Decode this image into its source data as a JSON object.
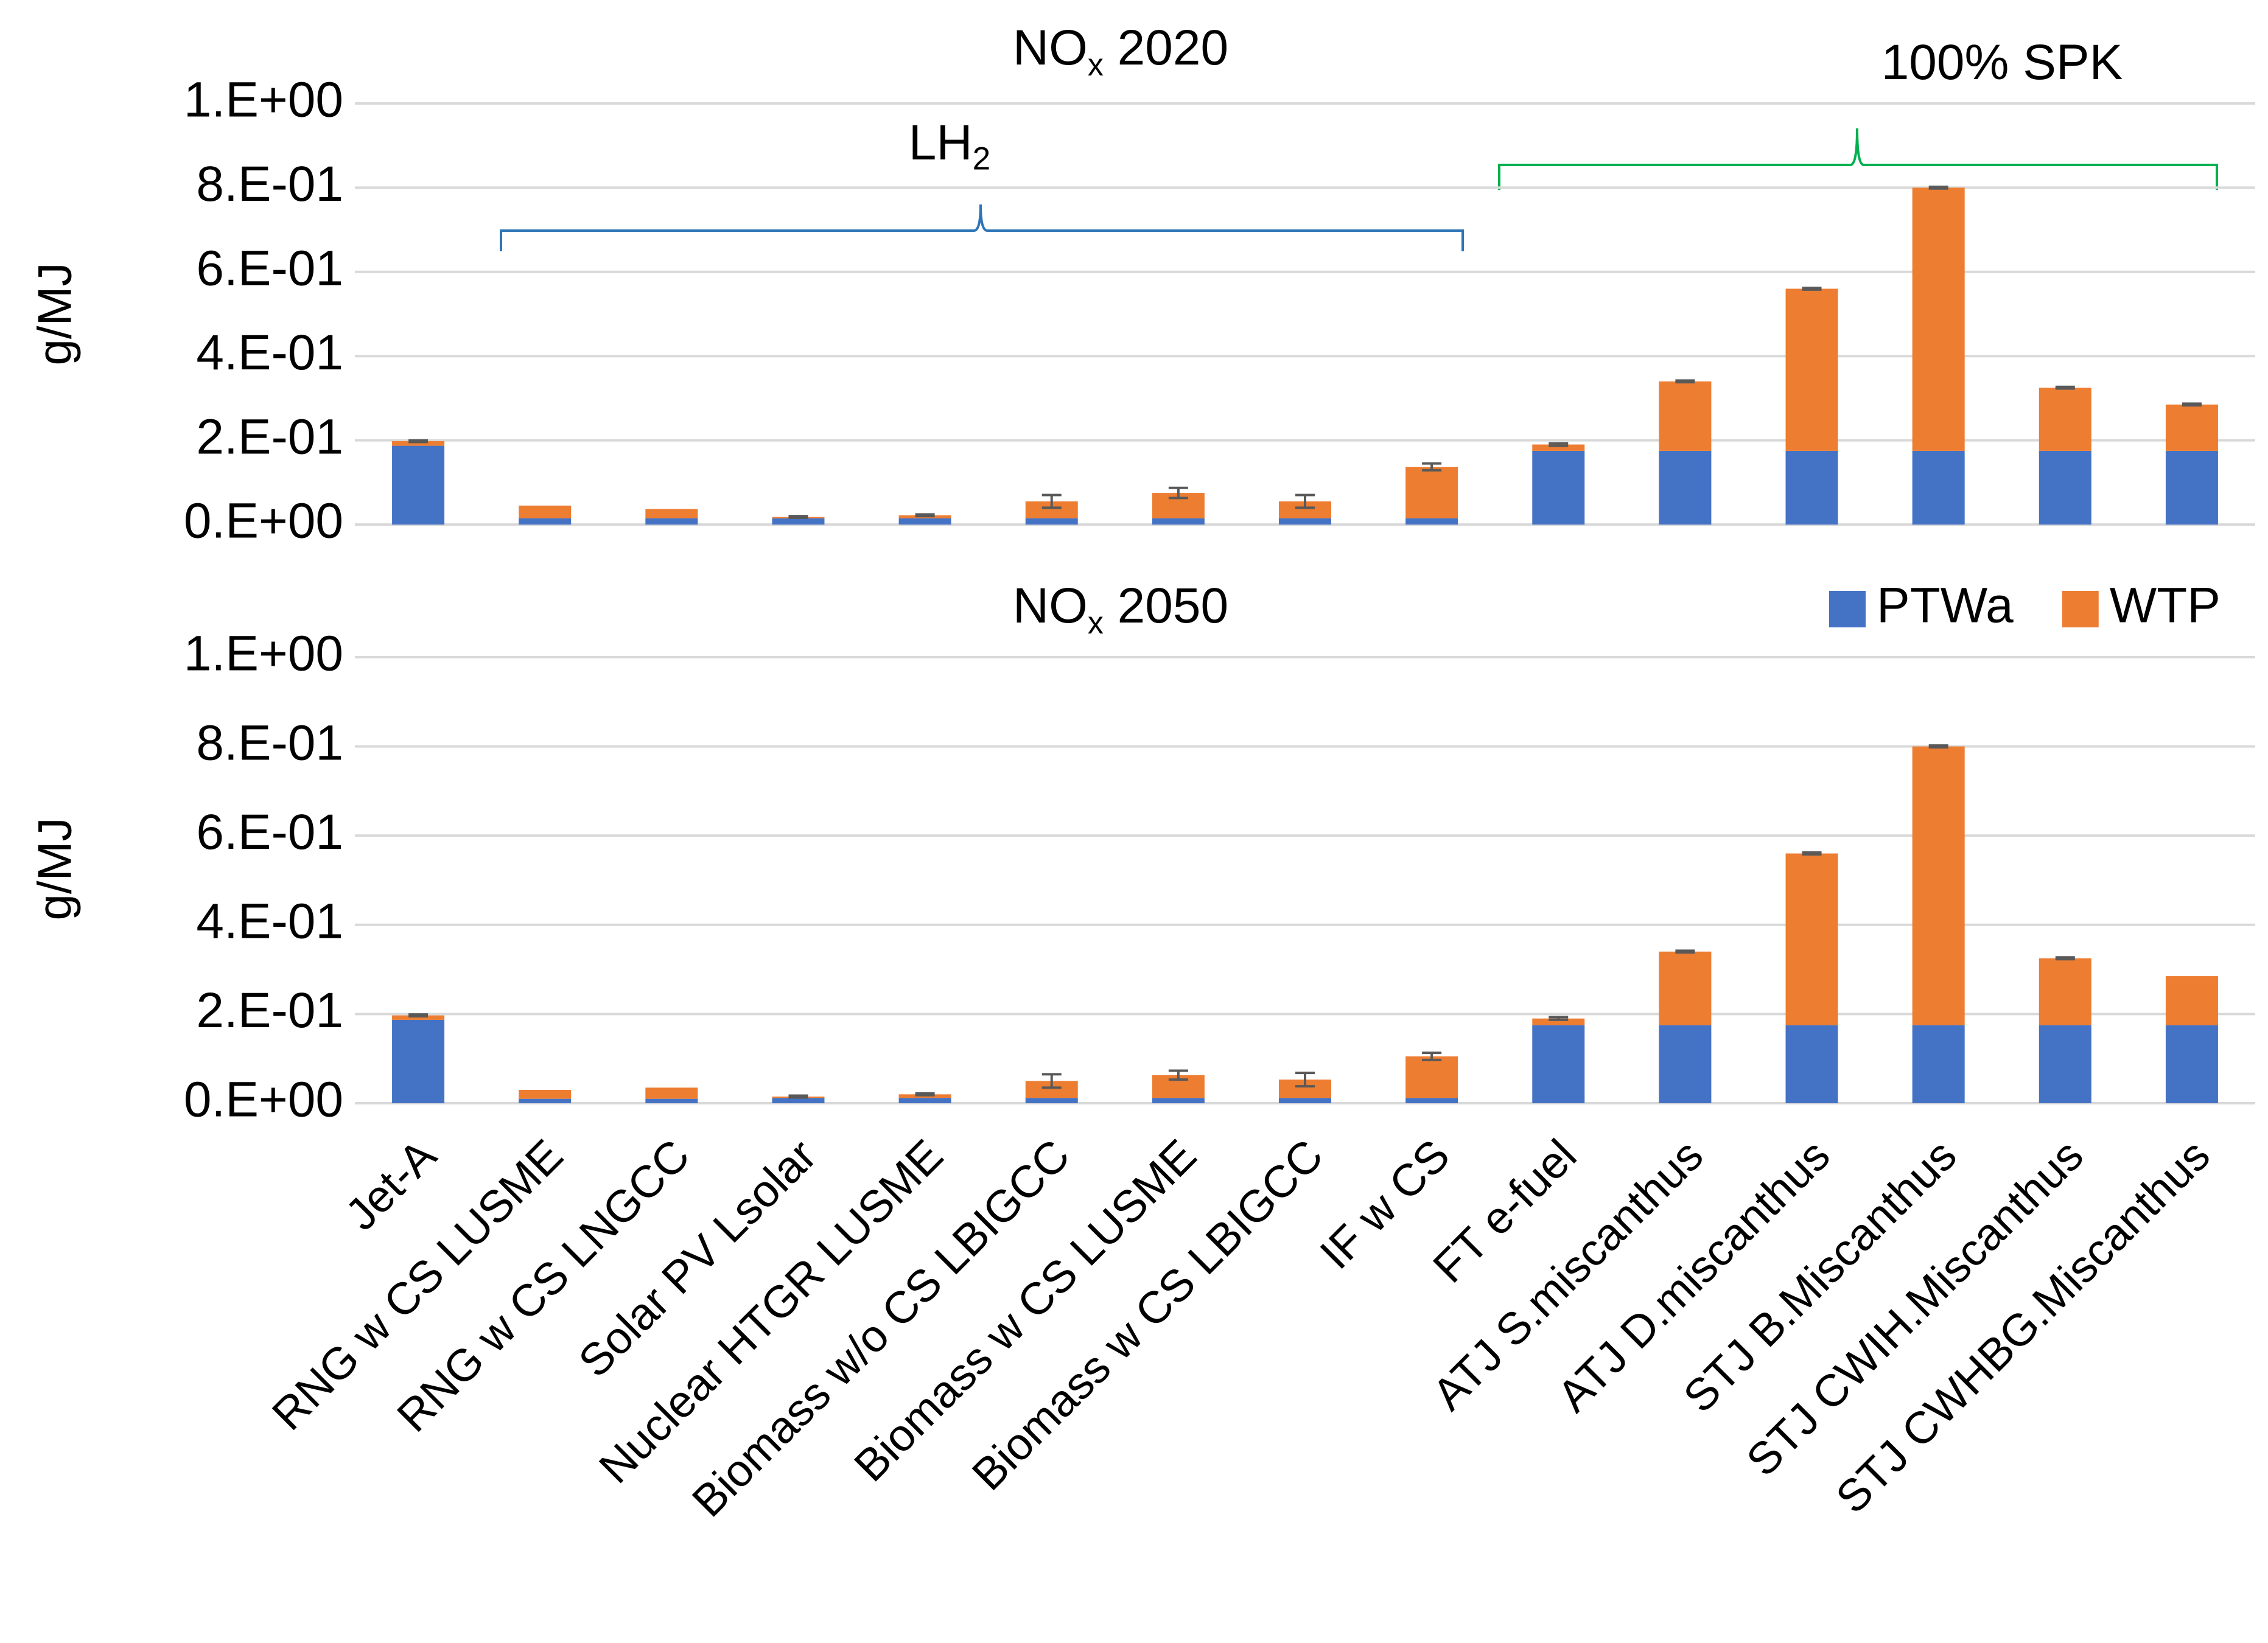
{
  "chart_data": [
    {
      "type": "bar",
      "stacked": true,
      "title": {
        "main": "NO",
        "sub": "x",
        "rest": " 2020"
      },
      "y_label": "g/MJ",
      "series": [
        {
          "color": "#4472c4",
          "values": [
            0.187,
            0.015,
            0.015,
            0.015,
            0.015,
            0.015,
            0.015,
            0.015,
            0.015,
            0.175,
            0.175,
            0.175,
            0.175,
            0.175,
            0.175
          ]
        },
        {
          "color": "#ed7d31",
          "values": [
            0.011,
            0.03,
            0.022,
            0.003,
            0.007,
            0.04,
            0.06,
            0.04,
            0.122,
            0.015,
            0.165,
            0.385,
            0.625,
            0.15,
            0.11
          ]
        }
      ],
      "errors": [
        0.002,
        0,
        0,
        0.002,
        0.002,
        0.015,
        0.012,
        0.015,
        0.008,
        0.003,
        0.002,
        0.002,
        0.002,
        0.002,
        0.002
      ],
      "ylim": [
        0,
        1
      ],
      "yticks": [
        {
          "value": 0,
          "label": "0.E+00"
        },
        {
          "value": 0.2,
          "label": "2.E-01"
        },
        {
          "value": 0.4,
          "label": "4.E-01"
        },
        {
          "value": 0.6,
          "label": "6.E-01"
        },
        {
          "value": 0.8,
          "label": "8.E-01"
        },
        {
          "value": 1,
          "label": "1.E+00"
        }
      ],
      "grid": true,
      "annotations": [
        {
          "text": "LH",
          "sub": "2",
          "color": "#2e75b6"
        },
        {
          "text": "100% SPK",
          "color": "#00b050"
        }
      ]
    },
    {
      "type": "bar",
      "stacked": true,
      "title": {
        "main": "NO",
        "sub": "x",
        "rest": " 2050"
      },
      "y_label": "g/MJ",
      "categories": [
        "Jet-A",
        "RNG w CS LUSME",
        "RNG w CS LNGCC",
        "Solar PV Lsolar",
        "Nuclear HTGR LUSME",
        "Biomass w/o CS LBIGCC",
        "Biomass w CS LUSME",
        "Biomass w CS LBIGCC",
        "IF w CS",
        "FT e-fuel",
        "ATJ S.miscanthus",
        "ATJ D.miscanthus",
        "STJ B.Miscanthus",
        "STJ CWIH.Miscanthus",
        "STJ CWHBG.Miscanthus"
      ],
      "series": [
        {
          "name": "PTWa",
          "color": "#4472c4",
          "values": [
            0.187,
            0.01,
            0.01,
            0.012,
            0.012,
            0.012,
            0.012,
            0.012,
            0.012,
            0.175,
            0.175,
            0.175,
            0.175,
            0.175,
            0.175
          ]
        },
        {
          "name": "WTP",
          "color": "#ed7d31",
          "values": [
            0.01,
            0.02,
            0.025,
            0.003,
            0.008,
            0.038,
            0.051,
            0.041,
            0.093,
            0.015,
            0.165,
            0.385,
            0.625,
            0.15,
            0.11
          ]
        }
      ],
      "errors": [
        0.002,
        0,
        0,
        0.002,
        0.002,
        0.015,
        0.01,
        0.015,
        0.008,
        0.003,
        0.002,
        0.002,
        0.002,
        0.002,
        0
      ],
      "ylim": [
        0,
        1
      ],
      "yticks": [
        {
          "value": 0,
          "label": "0.E+00"
        },
        {
          "value": 0.2,
          "label": "2.E-01"
        },
        {
          "value": 0.4,
          "label": "4.E-01"
        },
        {
          "value": 0.6,
          "label": "6.E-01"
        },
        {
          "value": 0.8,
          "label": "8.E-01"
        },
        {
          "value": 1,
          "label": "1.E+00"
        }
      ],
      "grid": true,
      "legend": "upper right"
    }
  ]
}
